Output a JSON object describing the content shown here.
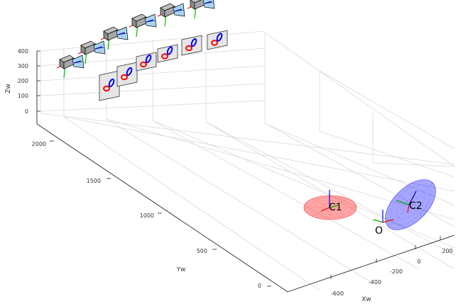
{
  "chart_data": {
    "type": "3d-scene",
    "axes": {
      "x": {
        "label": "Xw",
        "ticks": [
          "-600",
          "-400",
          "-200",
          "0",
          "200"
        ]
      },
      "y": {
        "label": "Yw",
        "ticks": [
          "0",
          "500",
          "1000",
          "1500",
          "2000"
        ]
      },
      "z": {
        "label": "Zw",
        "ticks": [
          "0",
          "100",
          "200",
          "300",
          "400"
        ]
      },
      "grid": true
    },
    "labels": {
      "origin": "O",
      "circle1": "C1",
      "circle2": "C2"
    },
    "colors": {
      "c1": "#ff0000",
      "c2": "#0000ff",
      "grid": "#d9d9d9",
      "axis": "#262626"
    },
    "camera_count": 6,
    "image_plane_count": 6
  }
}
